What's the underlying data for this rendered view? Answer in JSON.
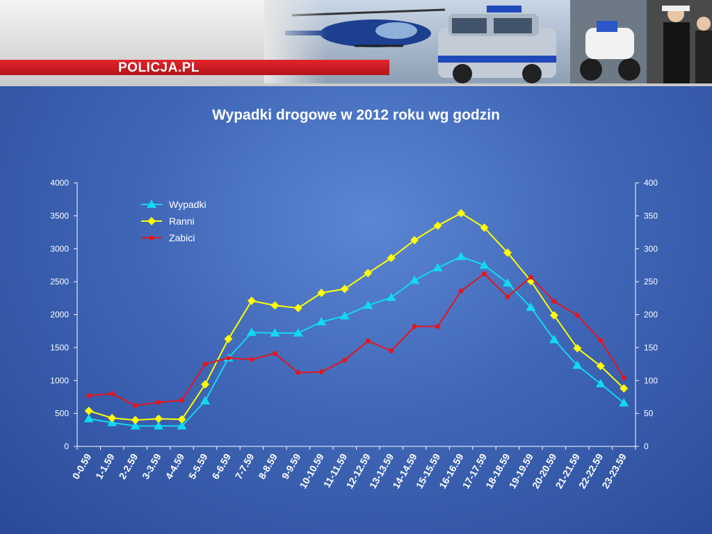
{
  "header": {
    "logo_text": "POLICJA.PL"
  },
  "colors": {
    "wypadki": "#12d8f0",
    "ranni": "#ffff00",
    "zabici": "#e3161e",
    "axis": "#ffffff"
  },
  "chart_data": {
    "type": "line",
    "title": "Wypadki drogowe w 2012 roku wg godzin",
    "categories": [
      "0-0.59",
      "1-1.59",
      "2-2.59",
      "3-3.59",
      "4-4.59",
      "5-5.59",
      "6-6.59",
      "7-7.59",
      "8-8.59",
      "9-9.59",
      "10-10.59",
      "11-11.59",
      "12-12.59",
      "13-13.59",
      "14-14.59",
      "15-15.59",
      "16-16.59",
      "17-17.59",
      "18-18.59",
      "19-19.59",
      "20-20.59",
      "21-21.59",
      "22-22.59",
      "23-23.59"
    ],
    "ylim": [
      0,
      4000
    ],
    "y2lim": [
      0,
      400
    ],
    "yticks": [
      "0",
      "500",
      "1000",
      "1500",
      "2000",
      "2500",
      "3000",
      "3500",
      "4000"
    ],
    "y2ticks": [
      "0",
      "50",
      "100",
      "150",
      "200",
      "250",
      "300",
      "350",
      "400"
    ],
    "legend_position": "top-left",
    "grid": false,
    "series": [
      {
        "name": "Wypadki",
        "axis": "left",
        "marker": "triangle",
        "values": [
          420,
          360,
          310,
          310,
          310,
          690,
          1340,
          1730,
          1720,
          1720,
          1890,
          1980,
          2140,
          2260,
          2520,
          2710,
          2880,
          2750,
          2480,
          2110,
          1620,
          1230,
          950,
          660
        ]
      },
      {
        "name": "Ranni",
        "axis": "left",
        "marker": "diamond",
        "values": [
          540,
          430,
          400,
          420,
          410,
          940,
          1630,
          2210,
          2140,
          2100,
          2330,
          2390,
          2630,
          2860,
          3130,
          3350,
          3540,
          3320,
          2940,
          2510,
          1990,
          1490,
          1220,
          880
        ]
      },
      {
        "name": "Zabici",
        "axis": "right",
        "marker": "dot",
        "values": [
          77,
          80,
          62,
          67,
          70,
          125,
          134,
          132,
          141,
          112,
          113,
          131,
          160,
          145,
          182,
          182,
          236,
          262,
          227,
          257,
          220,
          199,
          161,
          104
        ]
      }
    ]
  }
}
